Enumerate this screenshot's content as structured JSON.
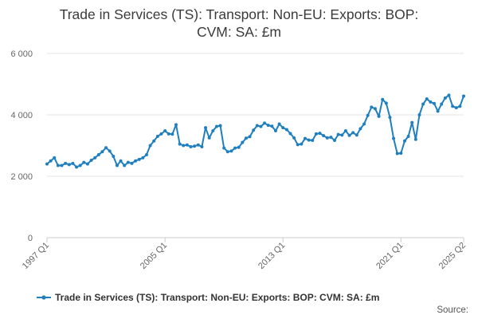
{
  "colors": {
    "series": "#1f7fbf",
    "grid": "#e6e6e6",
    "axis": "#cccccc"
  },
  "chart_data": {
    "type": "line",
    "title_line1": "Trade in Services (TS): Transport: Non-EU: Exports: BOP:",
    "title_line2": "CVM: SA: £m",
    "xlabel": "",
    "ylabel": "",
    "ylim": [
      0,
      6000
    ],
    "yticks": [
      0,
      2000,
      4000,
      6000
    ],
    "ytick_labels": [
      "0",
      "2 000",
      "4 000",
      "6 000"
    ],
    "xtick_labels": [
      "1997 Q1",
      "2005 Q1",
      "2013 Q1",
      "2021 Q1",
      "2025 Q2"
    ],
    "xtick_indices": [
      0,
      32,
      64,
      96,
      113
    ],
    "grid": true,
    "legend_position": "bottom",
    "source_label": "Source:",
    "series": [
      {
        "name": "Trade in Services (TS): Transport: Non-EU: Exports: BOP: CVM: SA: £m",
        "start": "1997 Q1",
        "frequency": "quarterly",
        "values": [
          2400,
          2500,
          2600,
          2350,
          2350,
          2420,
          2380,
          2420,
          2300,
          2350,
          2450,
          2400,
          2520,
          2600,
          2700,
          2800,
          2930,
          2820,
          2650,
          2350,
          2500,
          2350,
          2450,
          2420,
          2500,
          2550,
          2600,
          2700,
          3000,
          3150,
          3300,
          3380,
          3480,
          3380,
          3370,
          3680,
          3050,
          3000,
          3020,
          2960,
          2980,
          3020,
          2960,
          3580,
          3250,
          3480,
          3620,
          3650,
          2920,
          2800,
          2820,
          2920,
          2940,
          3100,
          3240,
          3290,
          3500,
          3650,
          3620,
          3730,
          3660,
          3630,
          3480,
          3700,
          3580,
          3520,
          3390,
          3250,
          3030,
          3050,
          3230,
          3180,
          3170,
          3380,
          3400,
          3320,
          3250,
          3270,
          3170,
          3360,
          3340,
          3480,
          3330,
          3420,
          3340,
          3550,
          3700,
          3980,
          4250,
          4200,
          3950,
          4500,
          4380,
          3920,
          3230,
          2740,
          2750,
          3150,
          3300,
          3750,
          3200,
          4000,
          4350,
          4520,
          4420,
          4370,
          4120,
          4350,
          4550,
          4640,
          4280,
          4230,
          4280,
          4610
        ]
      }
    ]
  }
}
